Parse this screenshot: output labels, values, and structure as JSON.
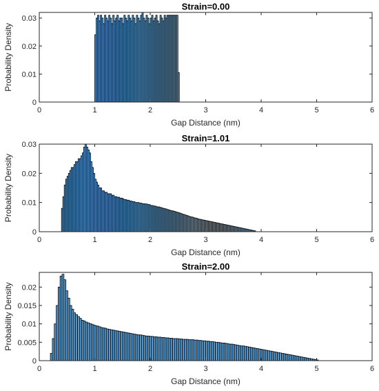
{
  "chart_data": [
    {
      "type": "bar",
      "title": "Strain=0.00",
      "xlabel": "Gap Distance (nm)",
      "ylabel": "Probability Density",
      "xlim": [
        0,
        6
      ],
      "ylim": [
        0,
        0.032
      ],
      "xticks": [
        "0",
        "1",
        "2",
        "3",
        "4",
        "5",
        "6"
      ],
      "yticks": [
        {
          "value": 0,
          "label": "0"
        },
        {
          "value": 0.01,
          "label": "0.01"
        },
        {
          "value": 0.02,
          "label": "0.02"
        },
        {
          "value": 0.03,
          "label": "0.03"
        }
      ],
      "bar_color": "#5a9fd4",
      "bin_width": 0.025,
      "bin_start": 1.0,
      "values": [
        0.024,
        0.03,
        0.031,
        0.029,
        0.031,
        0.03,
        0.028,
        0.031,
        0.03,
        0.029,
        0.031,
        0.03,
        0.028,
        0.031,
        0.029,
        0.03,
        0.031,
        0.029,
        0.03,
        0.03,
        0.028,
        0.031,
        0.03,
        0.029,
        0.031,
        0.03,
        0.029,
        0.031,
        0.03,
        0.028,
        0.031,
        0.03,
        0.029,
        0.031,
        0.032,
        0.03,
        0.029,
        0.031,
        0.03,
        0.028,
        0.03,
        0.031,
        0.029,
        0.03,
        0.031,
        0.029,
        0.028,
        0.031,
        0.03,
        0.029,
        0.031,
        0.03,
        0.031,
        0.031,
        0.031,
        0.031,
        0.031,
        0.031,
        0.031,
        0.031,
        0.0105
      ]
    },
    {
      "type": "bar",
      "title": "Strain=1.01",
      "xlabel": "Gap Distance (nm)",
      "ylabel": "Probability Density",
      "xlim": [
        0,
        6
      ],
      "ylim": [
        0,
        0.03
      ],
      "xticks": [
        "0",
        "1",
        "2",
        "3",
        "4",
        "5",
        "6"
      ],
      "yticks": [
        {
          "value": 0,
          "label": "0"
        },
        {
          "value": 0.01,
          "label": "0.01"
        },
        {
          "value": 0.02,
          "label": "0.02"
        },
        {
          "value": 0.03,
          "label": "0.03"
        }
      ],
      "bar_color": "#5a9fd4",
      "bin_width": 0.025,
      "bin_start": 0.4,
      "values": [
        0.008,
        0.012,
        0.016,
        0.018,
        0.019,
        0.02,
        0.021,
        0.022,
        0.022,
        0.023,
        0.024,
        0.024,
        0.025,
        0.025,
        0.026,
        0.027,
        0.029,
        0.03,
        0.029,
        0.028,
        0.027,
        0.024,
        0.022,
        0.02,
        0.018,
        0.017,
        0.016,
        0.015,
        0.015,
        0.014,
        0.014,
        0.0135,
        0.0135,
        0.013,
        0.013,
        0.013,
        0.0125,
        0.0125,
        0.012,
        0.012,
        0.0118,
        0.0118,
        0.0115,
        0.0115,
        0.0113,
        0.011,
        0.011,
        0.0108,
        0.0108,
        0.0105,
        0.0105,
        0.0103,
        0.0103,
        0.01,
        0.01,
        0.01,
        0.0098,
        0.0098,
        0.0096,
        0.0096,
        0.0095,
        0.0095,
        0.0093,
        0.0093,
        0.009,
        0.009,
        0.0088,
        0.0088,
        0.0086,
        0.0085,
        0.0085,
        0.0083,
        0.0082,
        0.008,
        0.0079,
        0.0078,
        0.0076,
        0.0075,
        0.0073,
        0.0072,
        0.0071,
        0.007,
        0.0068,
        0.0067,
        0.0065,
        0.0064,
        0.0062,
        0.006,
        0.0059,
        0.0057,
        0.0056,
        0.0054,
        0.0052,
        0.0051,
        0.005,
        0.0048,
        0.0047,
        0.0046,
        0.0044,
        0.0043,
        0.0042,
        0.0041,
        0.004,
        0.0039,
        0.0038,
        0.0037,
        0.0036,
        0.0035,
        0.0034,
        0.0033,
        0.0032,
        0.0031,
        0.003,
        0.0029,
        0.0028,
        0.0027,
        0.0026,
        0.0025,
        0.0024,
        0.0023,
        0.0022,
        0.0021,
        0.002,
        0.0019,
        0.0018,
        0.0017,
        0.0016,
        0.0015,
        0.0014,
        0.0013,
        0.0012,
        0.0011,
        0.001,
        0.0009,
        0.0008,
        0.0007,
        0.0006,
        0.0005,
        0.0004,
        0.0003
      ]
    },
    {
      "type": "bar",
      "title": "Strain=2.00",
      "xlabel": "Gap Distance (nm)",
      "ylabel": "Probability Density",
      "xlim": [
        0,
        6
      ],
      "ylim": [
        0,
        0.024
      ],
      "xticks": [
        "0",
        "1",
        "2",
        "3",
        "4",
        "5",
        "6"
      ],
      "yticks": [
        {
          "value": 0,
          "label": "0"
        },
        {
          "value": 0.005,
          "label": "0.005"
        },
        {
          "value": 0.01,
          "label": "0.01"
        },
        {
          "value": 0.015,
          "label": "0.015"
        },
        {
          "value": 0.02,
          "label": "0.02"
        }
      ],
      "bar_color": "#5a9fd4",
      "bin_width": 0.035,
      "bin_start": 0.2,
      "values": [
        0.002,
        0.006,
        0.01,
        0.015,
        0.02,
        0.023,
        0.0235,
        0.022,
        0.019,
        0.017,
        0.015,
        0.014,
        0.013,
        0.0125,
        0.012,
        0.0115,
        0.011,
        0.0108,
        0.0105,
        0.0103,
        0.0101,
        0.0099,
        0.0097,
        0.0095,
        0.0094,
        0.0092,
        0.009,
        0.0089,
        0.0088,
        0.0086,
        0.0085,
        0.0084,
        0.0083,
        0.0082,
        0.0081,
        0.008,
        0.0079,
        0.0078,
        0.0077,
        0.0076,
        0.0075,
        0.0074,
        0.0073,
        0.0072,
        0.0071,
        0.007,
        0.007,
        0.0069,
        0.0068,
        0.0067,
        0.0067,
        0.0066,
        0.0066,
        0.0065,
        0.0065,
        0.0064,
        0.0064,
        0.0063,
        0.0063,
        0.0062,
        0.0062,
        0.0061,
        0.0061,
        0.006,
        0.006,
        0.006,
        0.0059,
        0.0059,
        0.0058,
        0.0058,
        0.0058,
        0.0057,
        0.0057,
        0.0057,
        0.0056,
        0.0056,
        0.0055,
        0.0055,
        0.0054,
        0.0054,
        0.0053,
        0.0053,
        0.0052,
        0.0052,
        0.0051,
        0.005,
        0.005,
        0.0049,
        0.0048,
        0.0048,
        0.0047,
        0.0046,
        0.0045,
        0.0045,
        0.0044,
        0.0043,
        0.0042,
        0.0041,
        0.004,
        0.004,
        0.0039,
        0.0038,
        0.0037,
        0.0036,
        0.0035,
        0.0034,
        0.0033,
        0.0032,
        0.0031,
        0.003,
        0.0029,
        0.0028,
        0.0027,
        0.0026,
        0.0025,
        0.0024,
        0.0023,
        0.0022,
        0.0021,
        0.002,
        0.0019,
        0.0018,
        0.0017,
        0.0016,
        0.0015,
        0.0014,
        0.0013,
        0.0012,
        0.0011,
        0.001,
        0.0009,
        0.0008,
        0.0007,
        0.0006,
        0.0005,
        0.0004,
        0.0003,
        0.0002
      ]
    }
  ]
}
